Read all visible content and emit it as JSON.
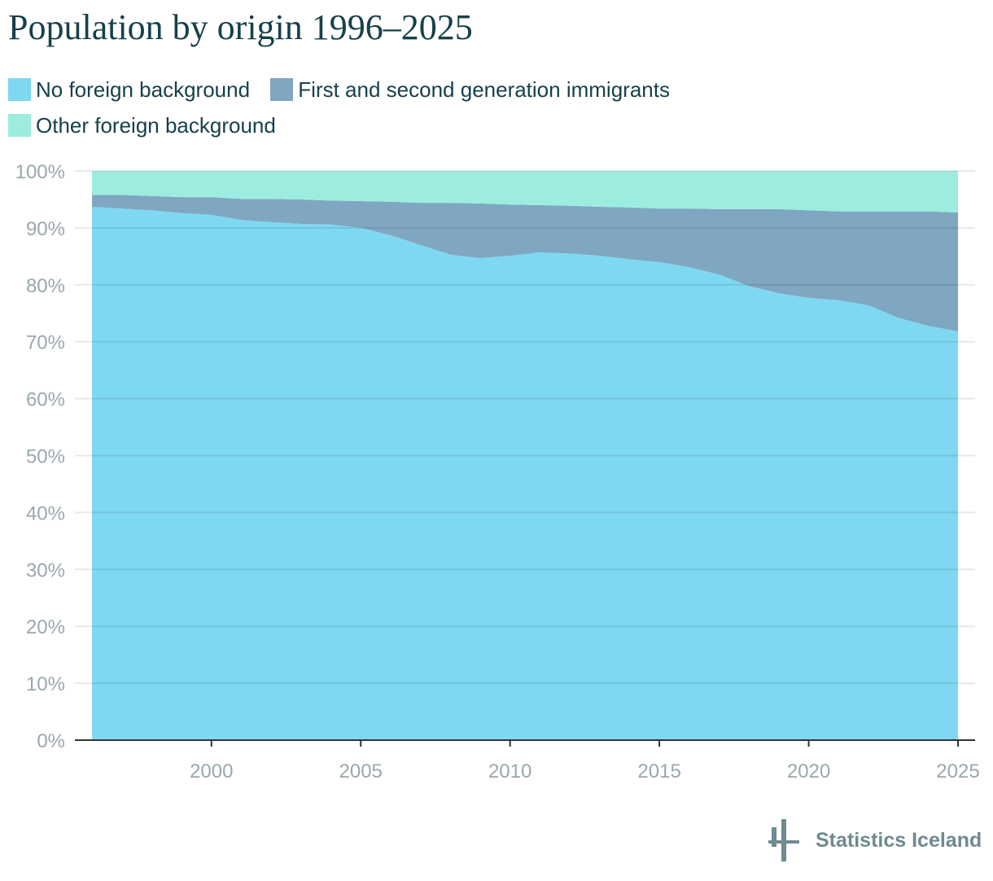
{
  "title": "Population by origin 1996–2025",
  "brand": "Statistics Iceland",
  "chart_data": {
    "type": "area",
    "stacked": true,
    "title": "Population by origin 1996–2025",
    "xlabel": "",
    "ylabel": "",
    "x": [
      1996,
      1997,
      1998,
      1999,
      2000,
      2001,
      2002,
      2003,
      2004,
      2005,
      2006,
      2007,
      2008,
      2009,
      2010,
      2011,
      2012,
      2013,
      2014,
      2015,
      2016,
      2017,
      2018,
      2019,
      2020,
      2021,
      2022,
      2023,
      2024,
      2025
    ],
    "xticks": [
      "2000",
      "2005",
      "2010",
      "2015",
      "2020",
      "2025"
    ],
    "yticks": [
      "0%",
      "10%",
      "20%",
      "30%",
      "40%",
      "50%",
      "60%",
      "70%",
      "80%",
      "90%",
      "100%"
    ],
    "ylim": [
      0,
      100
    ],
    "xlim": [
      1996,
      2025
    ],
    "grid": true,
    "legend_position": "top",
    "series": [
      {
        "name": "No foreign background",
        "color": "#7fd8f2",
        "values": [
          93.7,
          93.4,
          93.1,
          92.6,
          92.3,
          91.4,
          91.0,
          90.7,
          90.6,
          90.0,
          88.7,
          87.0,
          85.3,
          84.7,
          85.1,
          85.7,
          85.5,
          85.1,
          84.5,
          84.0,
          83.1,
          81.8,
          79.8,
          78.5,
          77.7,
          77.3,
          76.4,
          74.2,
          72.8,
          71.8
        ]
      },
      {
        "name": "First and second generation immigrants",
        "color": "#7fa7c1",
        "values": [
          2.1,
          2.4,
          2.5,
          2.8,
          3.1,
          3.7,
          4.1,
          4.3,
          4.2,
          4.7,
          5.9,
          7.4,
          9.1,
          9.6,
          9.0,
          8.3,
          8.4,
          8.6,
          9.1,
          9.4,
          10.3,
          11.5,
          13.5,
          14.8,
          15.4,
          15.6,
          16.5,
          18.7,
          20.1,
          20.9
        ]
      },
      {
        "name": "Other foreign background",
        "color": "#9cede0",
        "values": [
          4.2,
          4.2,
          4.4,
          4.6,
          4.6,
          4.9,
          4.9,
          5.0,
          5.2,
          5.3,
          5.4,
          5.6,
          5.6,
          5.7,
          5.9,
          6.0,
          6.1,
          6.3,
          6.4,
          6.6,
          6.6,
          6.7,
          6.7,
          6.7,
          6.9,
          7.1,
          7.1,
          7.1,
          7.1,
          7.3
        ]
      }
    ]
  }
}
